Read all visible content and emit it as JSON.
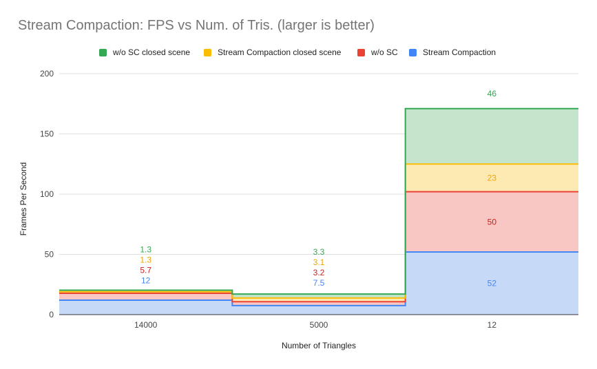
{
  "chart_data": {
    "type": "area",
    "stacked": true,
    "stepped": true,
    "title": "Stream Compaction: FPS vs Num. of Tris. (larger is better)",
    "xlabel": "Number of Triangles",
    "ylabel": "Frames Per Second",
    "categories": [
      "14000",
      "5000",
      "12"
    ],
    "ylim": [
      0,
      200
    ],
    "yticks": [
      0,
      50,
      100,
      150,
      200
    ],
    "grid": true,
    "legend_position": "top",
    "series": [
      {
        "name": "Stream Compaction",
        "values": [
          12,
          7.5,
          52
        ],
        "labels": [
          "12",
          "7.5",
          "52"
        ],
        "color": "#4285f4",
        "fill": "#c6daf8",
        "label_color": "#4285f4"
      },
      {
        "name": "w/o SC",
        "values": [
          5.7,
          3.2,
          50
        ],
        "labels": [
          "5.7",
          "3.2",
          "50"
        ],
        "color": "#ea4335",
        "fill": "#f8c7c3",
        "label_color": "#c5221f"
      },
      {
        "name": "Stream Compaction closed scene",
        "values": [
          1.3,
          3.1,
          23
        ],
        "labels": [
          "1.3",
          "3.1",
          "23"
        ],
        "color": "#fbbc04",
        "fill": "#fde9b2",
        "label_color": "#f0a500"
      },
      {
        "name": "w/o SC closed scene",
        "values": [
          1.3,
          3.3,
          46
        ],
        "labels": [
          "1.3",
          "3.3",
          "46"
        ],
        "color": "#34a853",
        "fill": "#c4e5cc",
        "label_color": "#34a853"
      }
    ],
    "legend_order": [
      "w/o SC closed scene",
      "Stream Compaction closed scene",
      "w/o SC",
      "Stream Compaction"
    ]
  }
}
